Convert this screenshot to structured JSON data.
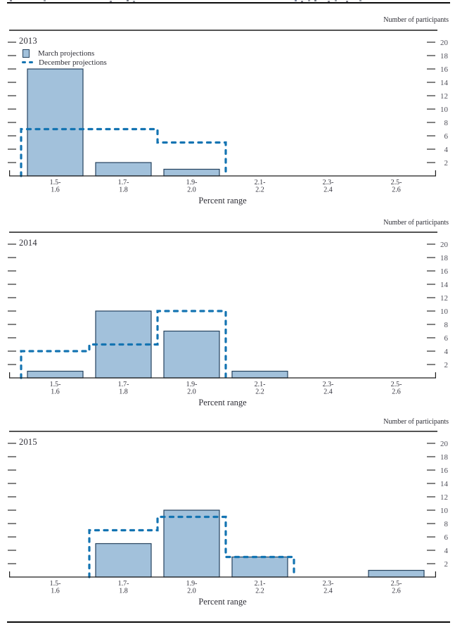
{
  "figure": {
    "right_axis_title": "Number of participants",
    "x_axis_title": "Percent range",
    "legend": {
      "march_label": "March projections",
      "december_label": "December projections"
    }
  },
  "colors": {
    "bar_fill": "#a2c1db",
    "bar_border": "#25425e",
    "dashed": "#1474b2",
    "axis": "#1c1c1c",
    "text": "#2e2e36",
    "tick_text": "#50505a"
  },
  "chart_data": [
    {
      "type": "bar",
      "title": "2013",
      "xlabel": "Percent range",
      "ylabel_right": "Number of participants",
      "categories": [
        "1.5–1.6",
        "1.7–1.8",
        "1.9–2.0",
        "2.1–2.2",
        "2.3–2.4",
        "2.5–2.6"
      ],
      "category_lines": [
        [
          "1.5-",
          "1.6"
        ],
        [
          "1.7-",
          "1.8"
        ],
        [
          "1.9-",
          "2.0"
        ],
        [
          "2.1-",
          "2.2"
        ],
        [
          "2.3-",
          "2.4"
        ],
        [
          "2.5-",
          "2.6"
        ]
      ],
      "yticks": [
        2,
        4,
        6,
        8,
        10,
        12,
        14,
        16,
        18,
        20
      ],
      "ylim": [
        0,
        21
      ],
      "grid": false,
      "legend_position": "top-left",
      "series": [
        {
          "name": "March projections",
          "style": "filled-bars",
          "values": [
            16,
            2,
            1,
            0,
            0,
            0
          ]
        },
        {
          "name": "December projections",
          "style": "dashed-step-outline",
          "values": [
            7,
            7,
            5,
            0,
            0,
            0
          ]
        }
      ]
    },
    {
      "type": "bar",
      "title": "2014",
      "xlabel": "Percent range",
      "ylabel_right": "Number of participants",
      "categories": [
        "1.5–1.6",
        "1.7–1.8",
        "1.9–2.0",
        "2.1–2.2",
        "2.3–2.4",
        "2.5–2.6"
      ],
      "category_lines": [
        [
          "1.5-",
          "1.6"
        ],
        [
          "1.7-",
          "1.8"
        ],
        [
          "1.9-",
          "2.0"
        ],
        [
          "2.1-",
          "2.2"
        ],
        [
          "2.3-",
          "2.4"
        ],
        [
          "2.5-",
          "2.6"
        ]
      ],
      "yticks": [
        2,
        4,
        6,
        8,
        10,
        12,
        14,
        16,
        18,
        20
      ],
      "ylim": [
        0,
        21
      ],
      "grid": false,
      "legend_position": "none",
      "series": [
        {
          "name": "March projections",
          "style": "filled-bars",
          "values": [
            1,
            10,
            7,
            1,
            0,
            0
          ]
        },
        {
          "name": "December projections",
          "style": "dashed-step-outline",
          "values": [
            4,
            5,
            10,
            0,
            0,
            0
          ]
        }
      ]
    },
    {
      "type": "bar",
      "title": "2015",
      "xlabel": "Percent range",
      "ylabel_right": "Number of participants",
      "categories": [
        "1.5–1.6",
        "1.7–1.8",
        "1.9–2.0",
        "2.1–2.2",
        "2.3–2.4",
        "2.5–2.6"
      ],
      "category_lines": [
        [
          "1.5-",
          "1.6"
        ],
        [
          "1.7-",
          "1.8"
        ],
        [
          "1.9-",
          "2.0"
        ],
        [
          "2.1-",
          "2.2"
        ],
        [
          "2.3-",
          "2.4"
        ],
        [
          "2.5-",
          "2.6"
        ]
      ],
      "yticks": [
        2,
        4,
        6,
        8,
        10,
        12,
        14,
        16,
        18,
        20
      ],
      "ylim": [
        0,
        21
      ],
      "grid": false,
      "legend_position": "none",
      "series": [
        {
          "name": "March projections",
          "style": "filled-bars",
          "values": [
            0,
            5,
            10,
            3,
            0,
            1
          ]
        },
        {
          "name": "December projections",
          "style": "dashed-step-outline",
          "values": [
            0,
            7,
            9,
            3,
            0,
            0
          ]
        }
      ]
    }
  ]
}
